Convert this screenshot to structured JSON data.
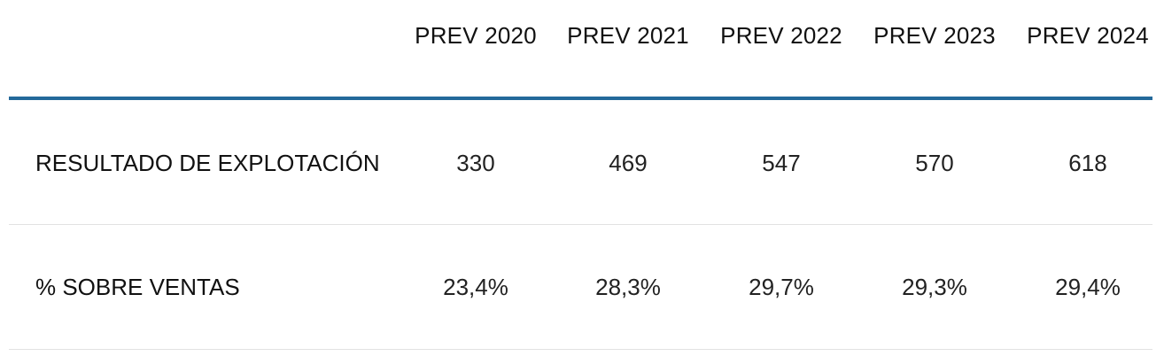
{
  "table": {
    "header": [
      "PREV 2020",
      "PREV 2021",
      "PREV 2022",
      "PREV 2023",
      "PREV 2024"
    ],
    "rows": [
      {
        "label": "RESULTADO DE EXPLOTACIÓN",
        "cells": [
          330,
          469,
          547,
          570,
          618
        ]
      },
      {
        "label": "% SOBRE VENTAS",
        "cells": [
          "23,4%",
          "28,3%",
          "29,7%",
          "29,3%",
          "29,4%"
        ]
      }
    ]
  }
}
